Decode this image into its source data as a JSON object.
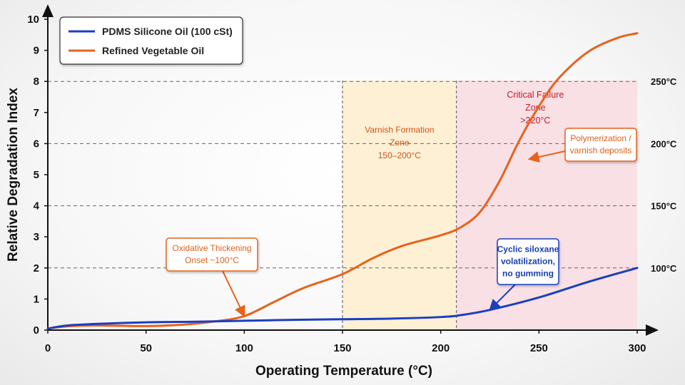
{
  "chart_data": {
    "type": "line",
    "xlabel": "Operating Temperature (°C)",
    "ylabel": "Relative Degradation Index",
    "xlim": [
      0,
      300
    ],
    "ylim": [
      0,
      10
    ],
    "x_ticks": [
      0,
      50,
      100,
      150,
      200,
      250,
      300
    ],
    "y_ticks": [
      0,
      1,
      2,
      3,
      4,
      5,
      6,
      7,
      8,
      9,
      10
    ],
    "legend_position": "top-left",
    "series": [
      {
        "name": "PDMS Silicone Oil (100 cSt)",
        "color": "#1a3fbf",
        "x": [
          0,
          10,
          25,
          50,
          75,
          100,
          125,
          150,
          175,
          200,
          210,
          225,
          250,
          275,
          300
        ],
        "y": [
          0.05,
          0.15,
          0.2,
          0.25,
          0.27,
          0.3,
          0.33,
          0.35,
          0.37,
          0.42,
          0.48,
          0.65,
          1.05,
          1.55,
          2.0
        ]
      },
      {
        "name": "Refined Vegetable Oil",
        "color": "#e8621c",
        "x": [
          0,
          10,
          25,
          50,
          70,
          85,
          100,
          115,
          130,
          150,
          165,
          180,
          200,
          210,
          220,
          230,
          240,
          250,
          260,
          275,
          290,
          300
        ],
        "y": [
          0.05,
          0.12,
          0.15,
          0.13,
          0.18,
          0.28,
          0.45,
          0.9,
          1.35,
          1.8,
          2.3,
          2.7,
          3.05,
          3.3,
          3.8,
          4.8,
          6.1,
          7.2,
          8.1,
          8.95,
          9.4,
          9.55
        ]
      }
    ],
    "reference_lines": [
      {
        "y": 2,
        "label": "100°C"
      },
      {
        "y": 4,
        "label": "150°C"
      },
      {
        "y": 6,
        "label": "200°C"
      },
      {
        "y": 8,
        "label": "250°C"
      }
    ],
    "zones": [
      {
        "name": "varnish",
        "x_start": 150,
        "x_end": 208,
        "lines": [
          "Varnish Formation",
          "Zone",
          "150–200°C"
        ],
        "color": "#fdf0d5"
      },
      {
        "name": "critical",
        "x_start": 208,
        "x_end": 300,
        "lines": [
          "Critical Failure",
          "Zone",
          ">220°C"
        ],
        "color": "#f9e0e5"
      }
    ],
    "annotations": [
      {
        "name": "oxidative-thickening",
        "lines": [
          "Oxidative Thickening",
          "Onset ~100°C"
        ],
        "target_x": 100,
        "target_y": 0.45,
        "color": "#e8621c"
      },
      {
        "name": "polymerization",
        "lines": [
          "Polymerization /",
          "varnish deposits"
        ],
        "target_x": 245,
        "target_y": 5.5,
        "color": "#e8621c"
      },
      {
        "name": "cyclic-siloxane",
        "lines": [
          "Cyclic siloxane",
          "volatilization,",
          "no gumming"
        ],
        "target_x": 225,
        "target_y": 0.65,
        "color": "#1a3fbf"
      }
    ]
  }
}
